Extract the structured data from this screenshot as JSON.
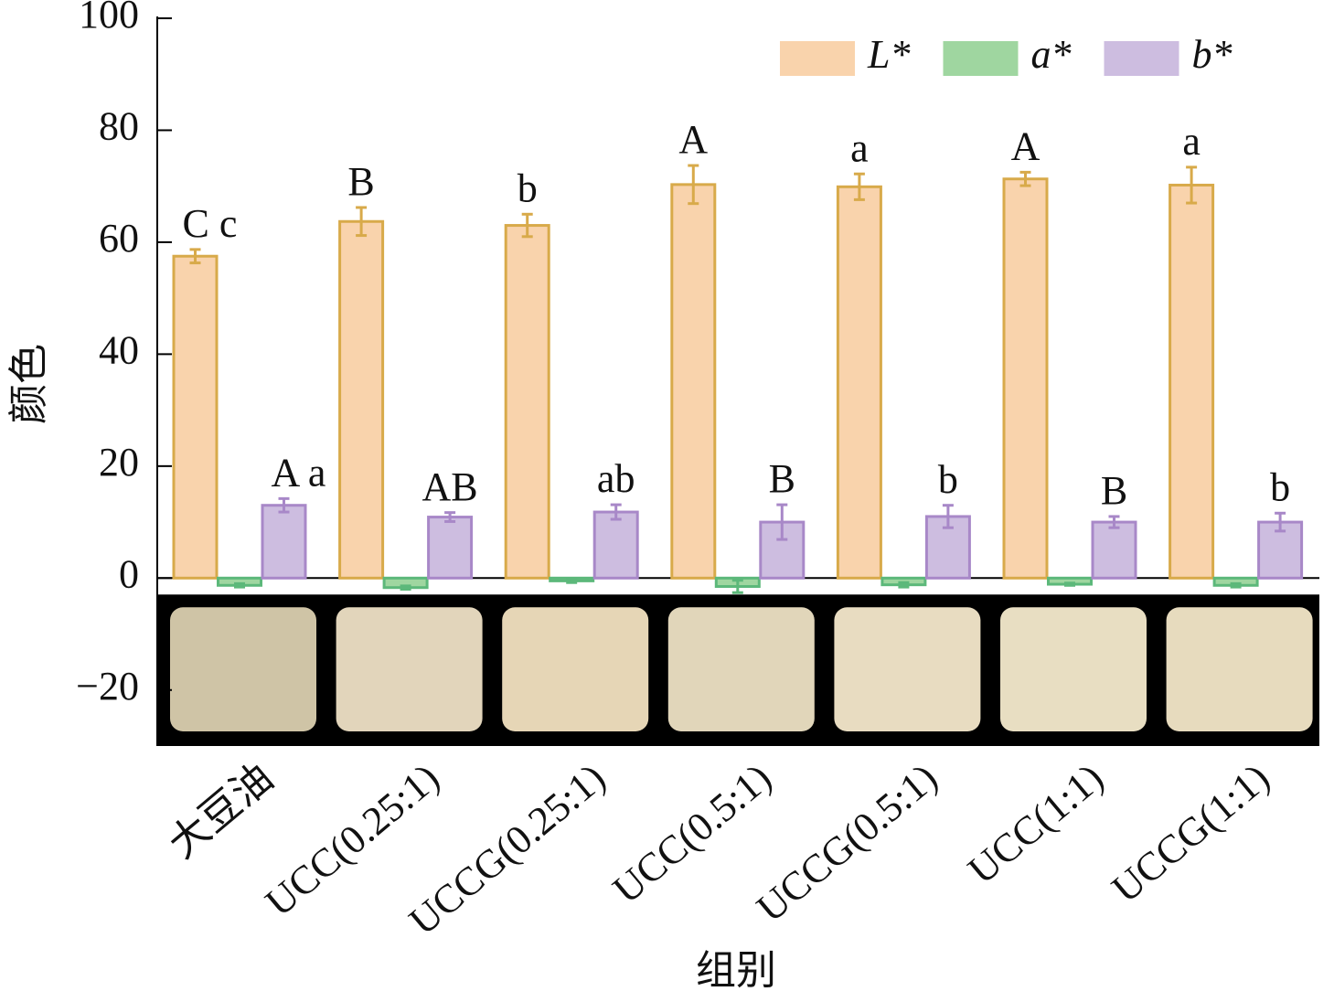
{
  "chart_data": {
    "type": "bar",
    "x_label": "组别",
    "y_label": "颜色",
    "categories": [
      "大豆油",
      "UCC(0.25:1)",
      "UCCG(0.25:1)",
      "UCC(0.5:1)",
      "UCCG(0.5:1)",
      "UCC(1:1)",
      "UCCG(1:1)"
    ],
    "series": [
      {
        "name": "L*",
        "color": "#f9d3ac",
        "edge": "#d8aa4a",
        "values": [
          57.5,
          63.7,
          63,
          70.3,
          69.9,
          71.3,
          70.2
        ],
        "errors": [
          1.2,
          2.5,
          2,
          3.4,
          2.3,
          1.2,
          3.2
        ],
        "labels": [
          "C c",
          "B",
          "b",
          "A",
          "a",
          "A",
          "a"
        ]
      },
      {
        "name": "a*",
        "color": "#9fd6a0",
        "edge": "#5cb87a",
        "values": [
          -1.3,
          -1.7,
          -0.5,
          -1.5,
          -1.2,
          -1.1,
          -1.3
        ],
        "errors": [
          0.3,
          0.3,
          0.3,
          1.1,
          0.4,
          0.2,
          0.3
        ]
      },
      {
        "name": "b*",
        "color": "#cdbde0",
        "edge": "#a888c8",
        "values": [
          13,
          10.9,
          11.8,
          10,
          11,
          10,
          10
        ],
        "errors": [
          1.2,
          0.8,
          1.3,
          3.1,
          2,
          1,
          1.6
        ],
        "labels": [
          "A a",
          "AB",
          "ab",
          "B",
          "b",
          "B",
          "b"
        ]
      }
    ],
    "ylim": [
      -30,
      100
    ],
    "yticks": [
      {
        "value": -20,
        "label": "−20"
      },
      0,
      20,
      40,
      60,
      80,
      100
    ],
    "legend": "top-right"
  }
}
